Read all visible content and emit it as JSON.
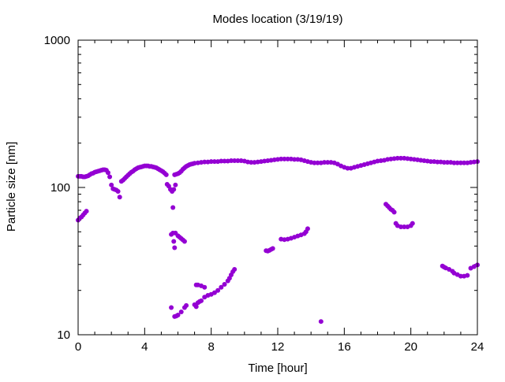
{
  "chart_data": {
    "type": "scatter",
    "title": "Modes location (3/19/19)",
    "xlabel": "Time [hour]",
    "ylabel": "Particle size [nm]",
    "xlim": [
      0,
      24
    ],
    "ylim": [
      10,
      1000
    ],
    "yscale": "log",
    "x_ticks": [
      {
        "value": 0,
        "label": "0"
      },
      {
        "value": 4,
        "label": "4"
      },
      {
        "value": 8,
        "label": "8"
      },
      {
        "value": 12,
        "label": "12"
      },
      {
        "value": 16,
        "label": "16"
      },
      {
        "value": 20,
        "label": "20"
      },
      {
        "value": 24,
        "label": "24"
      }
    ],
    "y_ticks": [
      {
        "value": 10,
        "label": "10"
      },
      {
        "value": 100,
        "label": "100"
      },
      {
        "value": 1000,
        "label": "1000"
      }
    ],
    "grid": false,
    "legend": "none",
    "marker_color": "#9400d3",
    "series": [
      {
        "points": [
          [
            0,
            119
          ],
          [
            0.1,
            119
          ],
          [
            0.2,
            119
          ],
          [
            0.3,
            118
          ],
          [
            0.4,
            118
          ],
          [
            0.5,
            119
          ],
          [
            0.6,
            120
          ],
          [
            0.7,
            122
          ],
          [
            0.8,
            124
          ],
          [
            0.9,
            125
          ],
          [
            1.0,
            127
          ],
          [
            1.1,
            128
          ],
          [
            1.2,
            129
          ],
          [
            1.3,
            130
          ],
          [
            1.4,
            131
          ],
          [
            1.5,
            132
          ],
          [
            1.6,
            132
          ],
          [
            1.7,
            131
          ],
          [
            1.8,
            126
          ],
          [
            1.9,
            118
          ],
          [
            2.6,
            110
          ],
          [
            2.7,
            112
          ],
          [
            2.8,
            115
          ],
          [
            2.9,
            118
          ],
          [
            3.0,
            121
          ],
          [
            3.1,
            124
          ],
          [
            3.2,
            127
          ],
          [
            3.3,
            129
          ],
          [
            3.4,
            132
          ],
          [
            3.5,
            134
          ],
          [
            3.6,
            136
          ],
          [
            3.7,
            137
          ],
          [
            3.8,
            138
          ],
          [
            3.9,
            139
          ],
          [
            4.0,
            140
          ],
          [
            4.1,
            140
          ],
          [
            4.2,
            140
          ],
          [
            4.3,
            139
          ],
          [
            4.4,
            139
          ],
          [
            4.5,
            138
          ],
          [
            4.6,
            137
          ],
          [
            4.7,
            136
          ],
          [
            4.8,
            134
          ],
          [
            4.9,
            132
          ],
          [
            5.0,
            130
          ],
          [
            5.1,
            128
          ],
          [
            5.2,
            125
          ],
          [
            5.3,
            122
          ],
          [
            5.8,
            122
          ],
          [
            5.9,
            123
          ],
          [
            6.0,
            124
          ],
          [
            6.1,
            126
          ],
          [
            6.2,
            129
          ],
          [
            6.3,
            133
          ],
          [
            6.4,
            136
          ],
          [
            6.5,
            139
          ],
          [
            6.6,
            141
          ],
          [
            6.7,
            143
          ],
          [
            6.8,
            144
          ],
          [
            6.9,
            145
          ],
          [
            7.0,
            146
          ],
          [
            7.2,
            147
          ],
          [
            7.4,
            148
          ],
          [
            7.6,
            149
          ],
          [
            7.8,
            149
          ],
          [
            8.0,
            150
          ],
          [
            8.2,
            150
          ],
          [
            8.4,
            150
          ],
          [
            8.6,
            151
          ],
          [
            8.8,
            151
          ],
          [
            9.0,
            151
          ],
          [
            9.2,
            152
          ],
          [
            9.4,
            152
          ],
          [
            9.6,
            152
          ],
          [
            9.8,
            152
          ],
          [
            10.0,
            151
          ],
          [
            10.2,
            149
          ],
          [
            10.4,
            148
          ],
          [
            10.6,
            148
          ],
          [
            10.8,
            149
          ],
          [
            11.0,
            150
          ],
          [
            11.2,
            151
          ],
          [
            11.4,
            152
          ],
          [
            11.6,
            153
          ],
          [
            11.8,
            154
          ],
          [
            12.0,
            155
          ],
          [
            12.2,
            156
          ],
          [
            12.4,
            156
          ],
          [
            12.6,
            156
          ],
          [
            12.8,
            156
          ],
          [
            13.0,
            155
          ],
          [
            13.2,
            155
          ],
          [
            13.4,
            154
          ],
          [
            13.6,
            152
          ],
          [
            13.8,
            150
          ],
          [
            14.0,
            148
          ],
          [
            14.2,
            147
          ],
          [
            14.4,
            147
          ],
          [
            14.6,
            147
          ],
          [
            14.8,
            148
          ],
          [
            15.0,
            148
          ],
          [
            15.2,
            148
          ],
          [
            15.4,
            147
          ],
          [
            15.6,
            144
          ],
          [
            15.8,
            140
          ],
          [
            16.0,
            137
          ],
          [
            16.2,
            135
          ],
          [
            16.4,
            135
          ],
          [
            16.6,
            137
          ],
          [
            16.8,
            139
          ],
          [
            17.0,
            141
          ],
          [
            17.2,
            143
          ],
          [
            17.4,
            145
          ],
          [
            17.6,
            147
          ],
          [
            17.8,
            149
          ],
          [
            18.0,
            151
          ],
          [
            18.2,
            152
          ],
          [
            18.4,
            153
          ],
          [
            18.6,
            155
          ],
          [
            18.8,
            156
          ],
          [
            19.0,
            157
          ],
          [
            19.2,
            158
          ],
          [
            19.4,
            158
          ],
          [
            19.6,
            158
          ],
          [
            19.8,
            157
          ],
          [
            20.0,
            156
          ],
          [
            20.2,
            155
          ],
          [
            20.4,
            154
          ],
          [
            20.6,
            153
          ],
          [
            20.8,
            152
          ],
          [
            21.0,
            151
          ],
          [
            21.2,
            150
          ],
          [
            21.4,
            150
          ],
          [
            21.6,
            149
          ],
          [
            21.8,
            149
          ],
          [
            22.0,
            148
          ],
          [
            22.2,
            148
          ],
          [
            22.4,
            148
          ],
          [
            22.6,
            147
          ],
          [
            22.8,
            147
          ],
          [
            23.0,
            147
          ],
          [
            23.2,
            147
          ],
          [
            23.4,
            147
          ],
          [
            23.6,
            148
          ],
          [
            23.8,
            149
          ],
          [
            24.0,
            150
          ],
          [
            2.0,
            104
          ],
          [
            2.1,
            98
          ],
          [
            2.2,
            97
          ],
          [
            2.3,
            96
          ],
          [
            2.4,
            94
          ],
          [
            2.5,
            86
          ],
          [
            5.35,
            105
          ],
          [
            5.45,
            102
          ],
          [
            5.55,
            97
          ],
          [
            5.65,
            94
          ],
          [
            5.75,
            97
          ],
          [
            5.85,
            104
          ],
          [
            0.0,
            60
          ],
          [
            0.1,
            62
          ],
          [
            0.2,
            63
          ],
          [
            0.3,
            65
          ],
          [
            0.4,
            67
          ],
          [
            0.5,
            69
          ],
          [
            5.6,
            48
          ],
          [
            5.7,
            49
          ],
          [
            5.75,
            43
          ],
          [
            5.8,
            39
          ],
          [
            5.85,
            49
          ],
          [
            6.0,
            47
          ],
          [
            6.1,
            46
          ],
          [
            6.2,
            45
          ],
          [
            6.3,
            44
          ],
          [
            6.4,
            43
          ],
          [
            5.7,
            73
          ],
          [
            5.6,
            15.3
          ],
          [
            5.8,
            13.3
          ],
          [
            5.9,
            13.4
          ],
          [
            6.0,
            13.6
          ],
          [
            6.2,
            14.3
          ],
          [
            6.4,
            15.3
          ],
          [
            6.5,
            15.8
          ],
          [
            7.0,
            16.0
          ],
          [
            7.1,
            15.5
          ],
          [
            7.2,
            16.5
          ],
          [
            7.3,
            16.8
          ],
          [
            7.4,
            17.0
          ],
          [
            7.1,
            21.8
          ],
          [
            7.2,
            21.8
          ],
          [
            7.4,
            21.5
          ],
          [
            7.6,
            21.0
          ],
          [
            7.6,
            18.0
          ],
          [
            7.8,
            18.5
          ],
          [
            8.0,
            18.8
          ],
          [
            8.2,
            19.3
          ],
          [
            8.4,
            20.0
          ],
          [
            8.6,
            21.0
          ],
          [
            8.8,
            22.0
          ],
          [
            9.0,
            23.2
          ],
          [
            9.1,
            24.2
          ],
          [
            9.2,
            25.5
          ],
          [
            9.3,
            26.8
          ],
          [
            9.4,
            27.8
          ],
          [
            11.3,
            37.2
          ],
          [
            11.4,
            37.0
          ],
          [
            11.5,
            37.4
          ],
          [
            11.6,
            38.0
          ],
          [
            11.7,
            38.5
          ],
          [
            12.2,
            44.6
          ],
          [
            12.4,
            44.2
          ],
          [
            12.6,
            44.6
          ],
          [
            12.8,
            45.2
          ],
          [
            13.0,
            46.0
          ],
          [
            13.2,
            46.8
          ],
          [
            13.4,
            47.6
          ],
          [
            13.6,
            48.6
          ],
          [
            13.7,
            50.0
          ],
          [
            13.8,
            52.5
          ],
          [
            14.6,
            12.3
          ],
          [
            18.5,
            77
          ],
          [
            18.6,
            75
          ],
          [
            18.7,
            73
          ],
          [
            18.8,
            71
          ],
          [
            18.9,
            70
          ],
          [
            19.0,
            68
          ],
          [
            19.1,
            57
          ],
          [
            19.2,
            55
          ],
          [
            19.4,
            54
          ],
          [
            19.6,
            54
          ],
          [
            19.8,
            54
          ],
          [
            20.0,
            55
          ],
          [
            20.1,
            57
          ],
          [
            21.9,
            29.3
          ],
          [
            22.0,
            28.8
          ],
          [
            22.1,
            28.4
          ],
          [
            22.3,
            27.8
          ],
          [
            22.5,
            27.0
          ],
          [
            22.6,
            26.2
          ],
          [
            22.8,
            25.6
          ],
          [
            23.0,
            25.0
          ],
          [
            23.2,
            25.0
          ],
          [
            23.4,
            25.3
          ],
          [
            23.6,
            28.3
          ],
          [
            23.8,
            29.0
          ],
          [
            24.0,
            29.8
          ]
        ]
      }
    ]
  }
}
